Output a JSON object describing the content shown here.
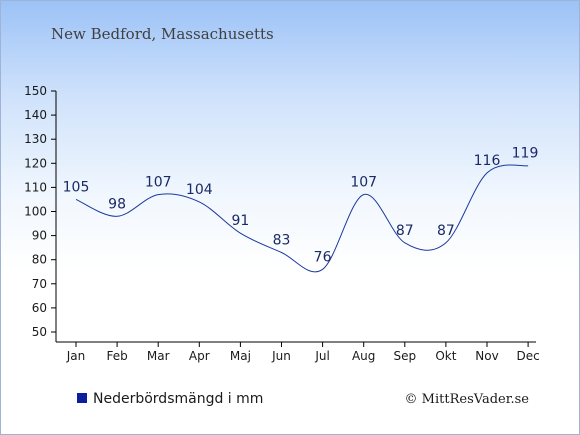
{
  "chart_data": {
    "type": "line",
    "title": "New Bedford, Massachusetts",
    "categories": [
      "Jan",
      "Feb",
      "Mar",
      "Apr",
      "Maj",
      "Jun",
      "Jul",
      "Aug",
      "Sep",
      "Okt",
      "Nov",
      "Dec"
    ],
    "series": [
      {
        "name": "Nederbördsmängd i mm",
        "values": [
          105,
          98,
          107,
          104,
          91,
          83,
          76,
          107,
          87,
          87,
          116,
          119
        ],
        "color": "#1c3aa0"
      }
    ],
    "yticks": [
      50,
      60,
      70,
      80,
      90,
      100,
      110,
      120,
      130,
      140,
      150
    ],
    "ylim": [
      50,
      150
    ],
    "grid": false,
    "legend_position": "bottom-left",
    "legend_color": "#0a1e9e"
  },
  "footer": {
    "copyright": "© MittResVader.se"
  }
}
